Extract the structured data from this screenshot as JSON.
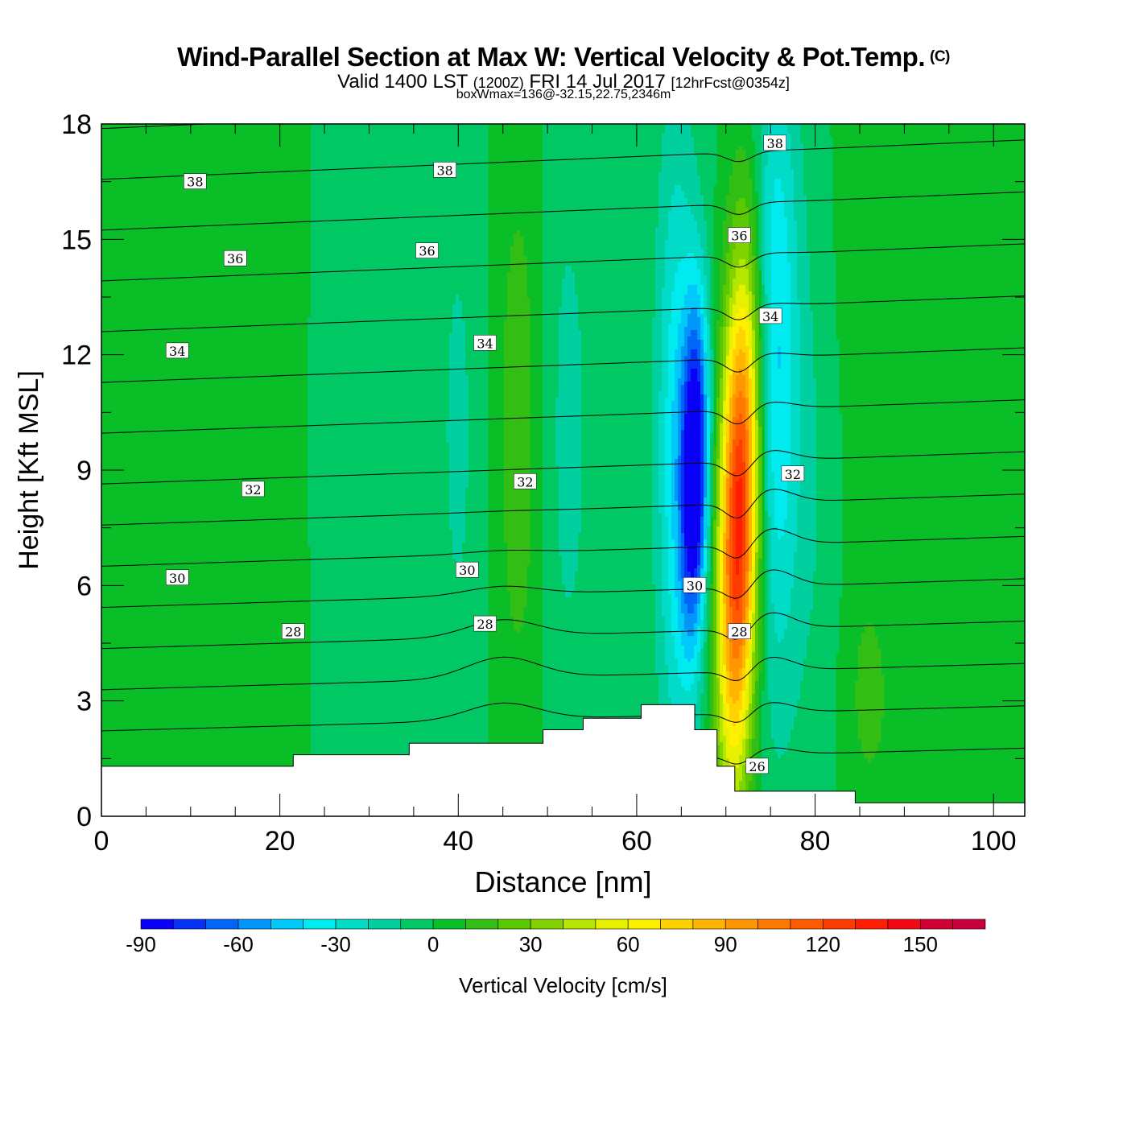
{
  "header": {
    "title": "Wind-Parallel Section at Max W: Vertical Velocity & Pot.Temp.",
    "copyright": "(C)",
    "valid_prefix": "Valid 1400 LST",
    "valid_utc": "(1200Z)",
    "valid_date": "FRI 14 Jul 2017",
    "forecast_info": "[12hrFcst@0354z]",
    "box_info": "boxWmax=136@-32.15,22.75,2346m"
  },
  "chart_data": {
    "type": "heatmap",
    "xlabel": "Distance [nm]",
    "ylabel": "Height [Kft MSL]",
    "xlim": [
      0,
      103.5
    ],
    "ylim": [
      0,
      18
    ],
    "x_ticks": [
      0,
      20,
      40,
      60,
      80,
      100
    ],
    "y_ticks": [
      0,
      3,
      6,
      9,
      12,
      15,
      18
    ],
    "colorbar": {
      "label": "Vertical Velocity [cm/s]",
      "min": -90,
      "max": 170,
      "step": 10,
      "tick_values": [
        -90,
        -60,
        -30,
        0,
        30,
        60,
        90,
        120,
        150
      ],
      "colors": [
        "#0a00f5",
        "#0632f8",
        "#0066fa",
        "#0096fa",
        "#00c8fa",
        "#00ebf0",
        "#00dcc8",
        "#00cfa0",
        "#00c864",
        "#0abe28",
        "#32be14",
        "#5ac800",
        "#82d200",
        "#b4e600",
        "#e6f000",
        "#fff000",
        "#ffd200",
        "#ffb400",
        "#ff9600",
        "#ff7800",
        "#ff5a00",
        "#ff3c00",
        "#ff1e00",
        "#f00a14",
        "#d20032",
        "#c8003c"
      ]
    },
    "terrain_kft": [
      {
        "x_start": 0,
        "x_end": 21.5,
        "height": 1.3
      },
      {
        "x_start": 21.5,
        "x_end": 34.5,
        "height": 1.6
      },
      {
        "x_start": 34.5,
        "x_end": 49.5,
        "height": 1.9
      },
      {
        "x_start": 49.5,
        "x_end": 54,
        "height": 2.25
      },
      {
        "x_start": 54,
        "x_end": 60.5,
        "height": 2.55
      },
      {
        "x_start": 60.5,
        "x_end": 66.5,
        "height": 2.9
      },
      {
        "x_start": 66.5,
        "x_end": 69,
        "height": 2.25
      },
      {
        "x_start": 69,
        "x_end": 71,
        "height": 1.3
      },
      {
        "x_start": 71,
        "x_end": 84.5,
        "height": 0.65
      },
      {
        "x_start": 84.5,
        "x_end": 103.5,
        "height": 0.35
      }
    ],
    "updraft_core": {
      "x_center": 71.5,
      "max_cm_s": 136,
      "height_kft": 7.7
    },
    "downdraft_core": {
      "x_center": 66.5,
      "min_cm_s": -95,
      "height_kft": 9.0
    },
    "theta_contours": [
      {
        "level": 26,
        "label_x": 73.5,
        "label_y": 1.3
      },
      {
        "level": 28,
        "label_x": 21.5,
        "label_y": 4.8
      },
      {
        "level": 28,
        "label_x": 43.0,
        "label_y": 5.0
      },
      {
        "level": 28,
        "label_x": 71.5,
        "label_y": 4.8
      },
      {
        "level": 30,
        "label_x": 8.5,
        "label_y": 6.2
      },
      {
        "level": 30,
        "label_x": 41.0,
        "label_y": 6.4
      },
      {
        "level": 30,
        "label_x": 66.5,
        "label_y": 6.0
      },
      {
        "level": 32,
        "label_x": 17.0,
        "label_y": 8.5
      },
      {
        "level": 32,
        "label_x": 47.5,
        "label_y": 8.7
      },
      {
        "level": 32,
        "label_x": 77.5,
        "label_y": 8.9
      },
      {
        "level": 34,
        "label_x": 8.5,
        "label_y": 12.1
      },
      {
        "level": 34,
        "label_x": 43.0,
        "label_y": 12.3
      },
      {
        "level": 34,
        "label_x": 75.0,
        "label_y": 13.0
      },
      {
        "level": 36,
        "label_x": 15.0,
        "label_y": 14.5
      },
      {
        "level": 36,
        "label_x": 36.5,
        "label_y": 14.7
      },
      {
        "level": 36,
        "label_x": 71.5,
        "label_y": 15.1
      },
      {
        "level": 38,
        "label_x": 10.5,
        "label_y": 16.5
      },
      {
        "level": 38,
        "label_x": 38.5,
        "label_y": 16.8
      },
      {
        "level": 38,
        "label_x": 75.5,
        "label_y": 17.5
      }
    ]
  }
}
